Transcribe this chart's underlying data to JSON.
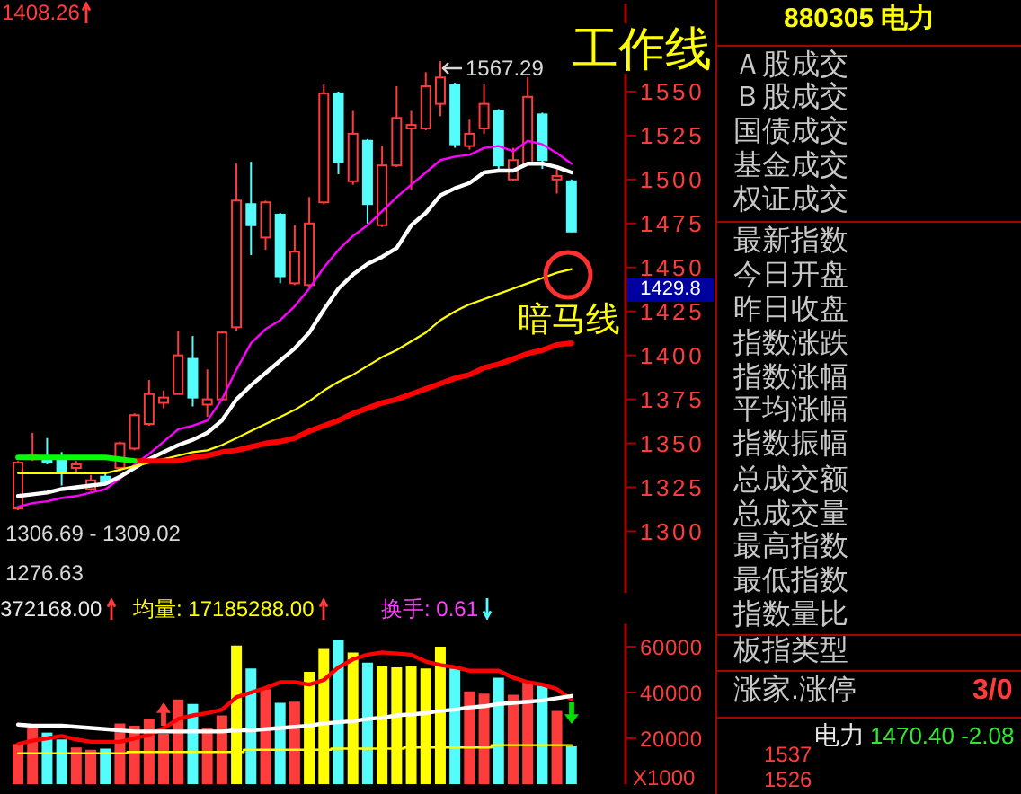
{
  "chart_data": [
    {
      "type": "candlestick",
      "categories": [
        null,
        null,
        null,
        null,
        null,
        null,
        null,
        null,
        null,
        null,
        null,
        null,
        null,
        null,
        null,
        null,
        null,
        null,
        null,
        null,
        null,
        null,
        null,
        null,
        null,
        null,
        null,
        null,
        null,
        null,
        null,
        null,
        null,
        null,
        null,
        null,
        null,
        null,
        null
      ],
      "ohlc": [
        [
          1313,
          1340,
          1312,
          1339
        ],
        [
          1341,
          1356,
          1340,
          1343
        ],
        [
          1341,
          1353,
          1338,
          1339
        ],
        [
          1341,
          1345,
          1326,
          1334
        ],
        [
          1336,
          1340,
          1334,
          1338
        ],
        [
          1324,
          1332,
          1323,
          1329
        ],
        [
          1331,
          1333,
          1327,
          1328
        ],
        [
          1336,
          1351,
          1334,
          1350
        ],
        [
          1347,
          1367,
          1346,
          1366
        ],
        [
          1361,
          1386,
          1360,
          1378
        ],
        [
          1373,
          1380,
          1370,
          1376
        ],
        [
          1378,
          1414,
          1378,
          1400
        ],
        [
          1398,
          1411,
          1371,
          1376
        ],
        [
          1372,
          1392,
          1365,
          1375
        ],
        [
          1375,
          1414,
          1374,
          1413
        ],
        [
          1416,
          1509,
          1414,
          1488
        ],
        [
          1486,
          1510,
          1457,
          1474
        ],
        [
          1467,
          1488,
          1460,
          1487
        ],
        [
          1480,
          1481,
          1441,
          1445
        ],
        [
          1441,
          1474,
          1440,
          1459
        ],
        [
          1440,
          1490,
          1439,
          1475
        ],
        [
          1487,
          1554,
          1486,
          1549
        ],
        [
          1549,
          1550,
          1503,
          1510
        ],
        [
          1499,
          1539,
          1497,
          1526
        ],
        [
          1522,
          1523,
          1475,
          1486
        ],
        [
          1474,
          1519,
          1473,
          1508
        ],
        [
          1508,
          1553,
          1507,
          1535
        ],
        [
          1529,
          1539,
          1494,
          1531
        ],
        [
          1529,
          1561,
          1528,
          1553
        ],
        [
          1543,
          1567.29,
          1536,
          1558
        ],
        [
          1554,
          1555,
          1518,
          1520
        ],
        [
          1519,
          1534,
          1517,
          1526
        ],
        [
          1529,
          1554,
          1526,
          1543
        ],
        [
          1539,
          1540,
          1506,
          1508
        ],
        [
          1500,
          1518,
          1499,
          1511
        ],
        [
          1509,
          1558,
          1508,
          1547
        ],
        [
          1537,
          1538,
          1506,
          1511
        ],
        [
          1500,
          1506,
          1492,
          1502
        ],
        [
          1499,
          1500,
          1470,
          1470.4
        ]
      ],
      "series": [
        {
          "type": "line",
          "color": "#ff00ff",
          "values": [
            1314,
            1316,
            1317,
            1319,
            1320,
            1322,
            1324,
            1330,
            1338,
            1344,
            1351,
            1358,
            1360,
            1363,
            1375,
            1392,
            1407,
            1415,
            1420,
            1428,
            1438,
            1450,
            1460,
            1468,
            1474,
            1482,
            1490,
            1497,
            1504,
            1511,
            1513,
            1514,
            1518,
            1519,
            1516,
            1522,
            1520,
            1515,
            1509
          ]
        },
        {
          "type": "line",
          "color": "#ffffff",
          "values": [
            1320,
            1321,
            1322,
            1324,
            1325,
            1326,
            1327,
            1331,
            1336,
            1341,
            1345,
            1349,
            1352,
            1356,
            1363,
            1375,
            1383,
            1390,
            1397,
            1404,
            1413,
            1426,
            1438,
            1446,
            1452,
            1456,
            1461,
            1474,
            1481,
            1491,
            1495,
            1498,
            1504,
            1505,
            1505,
            1509,
            1509,
            1507,
            1504
          ]
        },
        {
          "type": "line",
          "color": "#ffff00",
          "values": [
            1333,
            1333,
            1333,
            1333,
            1333,
            1333,
            1333,
            1335,
            1337,
            1339,
            1341,
            1343,
            1345,
            1346,
            1349,
            1353,
            1357,
            1361,
            1365,
            1369,
            1374,
            1380,
            1385,
            1389,
            1394,
            1399,
            1403,
            1408,
            1413,
            1420,
            1425,
            1429,
            1432,
            1435,
            1438,
            1441,
            1444,
            1447,
            1449
          ]
        },
        {
          "type": "line",
          "color": "#ff0000",
          "values": [
            null,
            null,
            null,
            null,
            null,
            null,
            null,
            null,
            1340,
            1340,
            1340,
            1340,
            1342,
            1343,
            1345,
            1346,
            1348,
            1350,
            1351,
            1353,
            1357,
            1360,
            1363,
            1367,
            1370,
            1373,
            1375,
            1378,
            1381,
            1384,
            1387,
            1389,
            1393,
            1395,
            1398,
            1401,
            1403,
            1406,
            1407
          ]
        },
        {
          "type": "line",
          "color": "#00ff00",
          "values": [
            1342,
            1342,
            1342,
            1342,
            1342,
            1342,
            1342,
            1341,
            1340,
            null,
            null,
            null,
            null,
            null,
            null,
            null,
            null,
            null,
            null,
            null,
            null,
            null,
            null,
            null,
            null,
            null,
            null,
            null,
            null,
            null,
            null,
            null,
            null,
            null,
            null,
            null,
            null,
            null,
            null
          ]
        }
      ],
      "ylim": [
        1265,
        1600
      ],
      "yticks": [
        1300,
        1325,
        1350,
        1375,
        1400,
        1425,
        1450,
        1475,
        1500,
        1525,
        1550
      ],
      "tick_labels": "y",
      "annotations": [
        "1567.29",
        "1408.26",
        "1306.69 - 1309.02",
        "1276.63",
        "1429.8",
        "工作线",
        "暗马线"
      ]
    },
    {
      "type": "bar",
      "categories": [
        null,
        null,
        null,
        null,
        null,
        null,
        null,
        null,
        null,
        null,
        null,
        null,
        null,
        null,
        null,
        null,
        null,
        null,
        null,
        null,
        null,
        null,
        null,
        null,
        null,
        null,
        null,
        null,
        null,
        null,
        null,
        null,
        null,
        null,
        null,
        null,
        null,
        null,
        null
      ],
      "series": [
        {
          "colors": [
            "#ff3c3c",
            "#ff3c3c",
            "#54fcfc",
            "#54fcfc",
            "#ff3c3c",
            "#ff3c3c",
            "#54fcfc",
            "#ff3c3c",
            "#ff3c3c",
            "#ff3c3c",
            "#ff3c3c",
            "#ff3c3c",
            "#54fcfc",
            "#ff3c3c",
            "#ff3c3c",
            "#ffff00",
            "#54fcfc",
            "#ff3c3c",
            "#54fcfc",
            "#ff3c3c",
            "#ffff00",
            "#ffff00",
            "#54fcfc",
            "#ffff00",
            "#54fcfc",
            "#ffff00",
            "#ffff00",
            "#ffff00",
            "#ffff00",
            "#ffff00",
            "#54fcfc",
            "#ff3c3c",
            "#ff3c3c",
            "#54fcfc",
            "#ff3c3c",
            "#ff3c3c",
            "#54fcfc",
            "#ff3c3c",
            "#54fcfc"
          ],
          "values": [
            17500,
            24500,
            22500,
            19500,
            16000,
            15000,
            15500,
            26500,
            25500,
            28500,
            22000,
            37000,
            35000,
            24500,
            30000,
            60500,
            50500,
            41500,
            35500,
            36000,
            49000,
            59000,
            63000,
            57500,
            53000,
            51500,
            51000,
            51500,
            50500,
            60000,
            50500,
            40500,
            39500,
            46500,
            39000,
            44500,
            43000,
            32000,
            16500
          ]
        },
        {
          "type": "line",
          "color": "#ff0000",
          "values": [
            17500,
            19000,
            20000,
            21000,
            19500,
            18500,
            18500,
            18500,
            20000,
            21500,
            24500,
            28500,
            30000,
            31000,
            32500,
            38000,
            40000,
            42000,
            44500,
            44500,
            43500,
            45500,
            51000,
            54500,
            56500,
            57500,
            57000,
            56500,
            53500,
            52000,
            51000,
            49500,
            49500,
            49500,
            46500,
            44500,
            43500,
            41500,
            37000
          ]
        },
        {
          "type": "line",
          "color": "#ffffff",
          "values": [
            26000,
            25500,
            25500,
            25500,
            25000,
            24500,
            24000,
            23500,
            23000,
            23000,
            23000,
            23000,
            23000,
            23000,
            23000,
            23500,
            23500,
            24000,
            24500,
            25000,
            25500,
            26500,
            27000,
            27500,
            28500,
            29000,
            30000,
            30500,
            31000,
            32000,
            32500,
            33500,
            34000,
            35000,
            35500,
            36000,
            36500,
            37500,
            38500
          ]
        },
        {
          "type": "step",
          "color": "#ffff00",
          "values": [
            13500,
            13500,
            13500,
            13500,
            13500,
            13500,
            13500,
            13500,
            14000,
            14000,
            14000,
            14000,
            14000,
            14000,
            14000,
            14000,
            15000,
            15000,
            15000,
            15000,
            15000,
            15000,
            15500,
            15500,
            15500,
            15500,
            15500,
            16000,
            16000,
            16000,
            16000,
            16000,
            16000,
            17000,
            17000,
            17000,
            17000,
            17000,
            17000
          ]
        }
      ],
      "ylim": [
        0,
        70000
      ],
      "yticks": [
        20000,
        40000,
        60000
      ],
      "ylabel": "X1000",
      "tick_labels": "y",
      "annotations": [
        "372168.00",
        "均量: 17185288.00",
        "换手: 0.61"
      ]
    },
    {
      "type": "other",
      "title": "880305 电力",
      "annotations": [
        "Ａ股成交",
        "Ｂ股成交",
        "国债成交",
        "基金成交",
        "权证成交",
        "最新指数",
        "今日开盘",
        "昨日收盘",
        "指数涨跌",
        "指数涨幅",
        "平均涨幅",
        "指数振幅",
        "总成交额",
        "总成交量",
        "最高指数",
        "最低指数",
        "指数量比",
        "板指类型",
        "涨家.涨停",
        "3/0",
        "电力",
        "1470.40 -2.08",
        "1537",
        "1526"
      ]
    }
  ]
}
